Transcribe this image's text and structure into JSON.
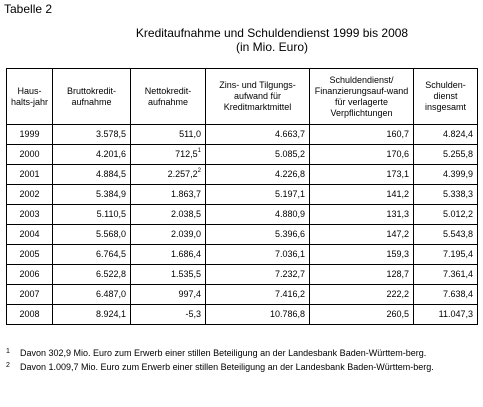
{
  "table_label": "Tabelle 2",
  "title_line1": "Kreditaufnahme und Schuldendienst 1999 bis 2008",
  "title_line2": "(in Mio. Euro)",
  "headers": [
    "Haus-halts-jahr",
    "Bruttokredit-aufnahme",
    "Nettokredit-aufnahme",
    "Zins- und Tilgungs-aufwand für Kreditmarktmittel",
    "Schuldendienst/ Finanzierungsauf-wand für verlagerte Verpflichtungen",
    "Schulden-dienst insgesamt"
  ],
  "rows": [
    {
      "year": "1999",
      "brutto": "3.578,5",
      "netto": "511,0",
      "netto_fn": "",
      "zins": "4.663,7",
      "verlagert": "160,7",
      "gesamt": "4.824,4"
    },
    {
      "year": "2000",
      "brutto": "4.201,6",
      "netto": "712,5",
      "netto_fn": "1",
      "zins": "5.085,2",
      "verlagert": "170,6",
      "gesamt": "5.255,8"
    },
    {
      "year": "2001",
      "brutto": "4.884,5",
      "netto": "2.257,2",
      "netto_fn": "2",
      "zins": "4.226,8",
      "verlagert": "173,1",
      "gesamt": "4.399,9"
    },
    {
      "year": "2002",
      "brutto": "5.384,9",
      "netto": "1.863,7",
      "netto_fn": "",
      "zins": "5.197,1",
      "verlagert": "141,2",
      "gesamt": "5.338,3"
    },
    {
      "year": "2003",
      "brutto": "5.110,5",
      "netto": "2.038,5",
      "netto_fn": "",
      "zins": "4.880,9",
      "verlagert": "131,3",
      "gesamt": "5.012,2"
    },
    {
      "year": "2004",
      "brutto": "5.568,0",
      "netto": "2.039,0",
      "netto_fn": "",
      "zins": "5.396,6",
      "verlagert": "147,2",
      "gesamt": "5.543,8"
    },
    {
      "year": "2005",
      "brutto": "6.764,5",
      "netto": "1.686,4",
      "netto_fn": "",
      "zins": "7.036,1",
      "verlagert": "159,3",
      "gesamt": "7.195,4"
    },
    {
      "year": "2006",
      "brutto": "6.522,8",
      "netto": "1.535,5",
      "netto_fn": "",
      "zins": "7.232,7",
      "verlagert": "128,7",
      "gesamt": "7.361,4"
    },
    {
      "year": "2007",
      "brutto": "6.487,0",
      "netto": "997,4",
      "netto_fn": "",
      "zins": "7.416,2",
      "verlagert": "222,2",
      "gesamt": "7.638,4"
    },
    {
      "year": "2008",
      "brutto": "8.924,1",
      "netto": "-5,3",
      "netto_fn": "",
      "zins": "10.786,8",
      "verlagert": "260,5",
      "gesamt": "11.047,3"
    }
  ],
  "footnotes": [
    {
      "mark": "1",
      "text": "Davon 302,9 Mio. Euro zum Erwerb einer stillen Beteiligung an der Landesbank Baden-Württem-berg."
    },
    {
      "mark": "2",
      "text": "Davon 1.009,7 Mio. Euro zum Erwerb einer stillen Beteiligung an der Landesbank Baden-Württem-berg."
    }
  ]
}
